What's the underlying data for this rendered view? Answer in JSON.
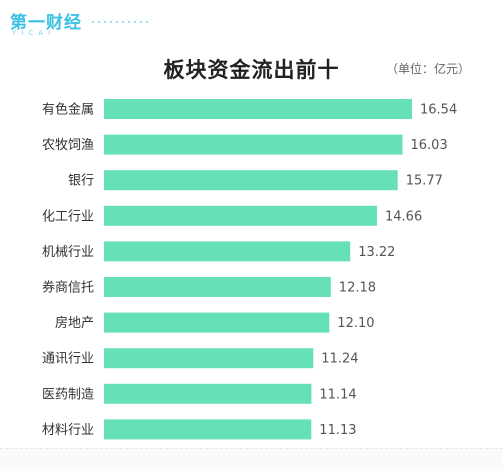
{
  "brand": {
    "name": "第一财经",
    "sub": "YICAI"
  },
  "chart_data": {
    "type": "bar",
    "orientation": "horizontal",
    "title": "板块资金流出前十",
    "unit": "（单位：亿元）",
    "categories": [
      "有色金属",
      "农牧饲渔",
      "银行",
      "化工行业",
      "机械行业",
      "券商信托",
      "房地产",
      "通讯行业",
      "医药制造",
      "材料行业"
    ],
    "values": [
      16.54,
      16.03,
      15.77,
      14.66,
      13.22,
      12.18,
      12.1,
      11.24,
      11.14,
      11.13
    ],
    "value_labels": [
      "16.54",
      "16.03",
      "15.77",
      "14.66",
      "13.22",
      "12.18",
      "12.10",
      "11.24",
      "11.14",
      "11.13"
    ],
    "xlim": [
      0,
      16.54
    ],
    "bar_color": "#66e0b6",
    "grid": false,
    "legend": "none"
  }
}
